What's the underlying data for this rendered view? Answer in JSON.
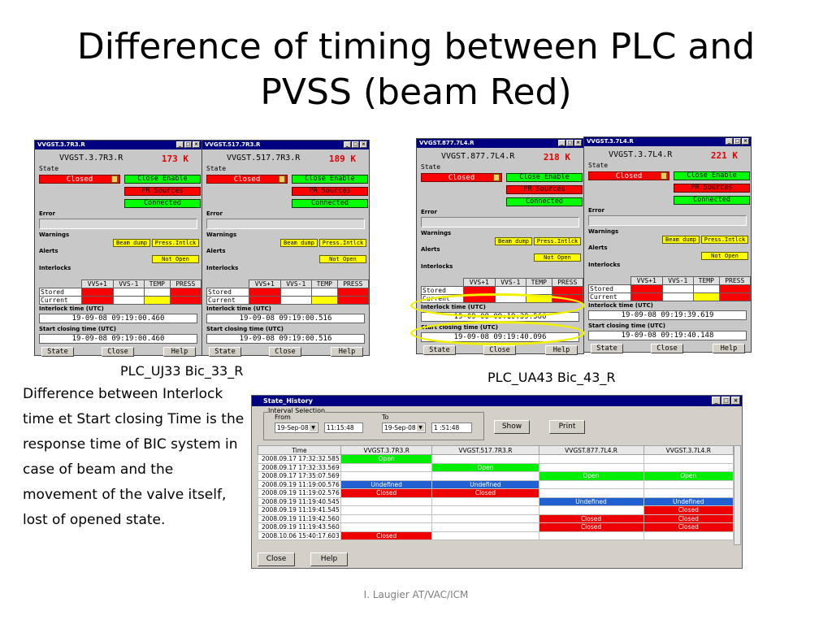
{
  "slide": {
    "title_line1": "Difference of timing between PLC and",
    "title_line2": "PVSS (beam Red)",
    "caption_left": "PLC_UJ33 Bic_33_R",
    "caption_right": "PLC_UA43 Bic_43_R",
    "body": "Difference between Interlock time et Start closing Time is the response time of BIC system in case of beam and the movement of the valve itself, lost of opened state.",
    "footer": "I. Laugier AT/VAC/ICM"
  },
  "labels": {
    "state": "State",
    "error": "Error",
    "warnings": "Warnings",
    "alerts": "Alerts",
    "interlocks": "Interlocks",
    "closed": "Closed",
    "close_enable": "Close Enable",
    "pr_sources": "PR Sources",
    "connected": "Connected",
    "beam_dump": "Beam dump",
    "press_intlck": "Press.Intlck",
    "not_open": "Not Open",
    "col_vvs1p": "VVS+1",
    "col_vvs1m": "VVS-1",
    "col_temp": "TEMP",
    "col_press": "PRESS",
    "stored": "Stored",
    "current": "Current",
    "interlock_time": "Interlock time (UTC)",
    "start_closing": "Start closing time (UTC)",
    "btn_state": "State",
    "btn_close": "Close",
    "btn_help": "Help"
  },
  "windows": [
    {
      "title": "VVGST.3.7R3.R",
      "name": "VVGST.3.7R3.R",
      "pressure": "173 K",
      "interlock_time": "19-09-08 09:19:00.460",
      "start_closing_time": "19-09-08 09:19:00.460"
    },
    {
      "title": "VVGST.517.7R3.R",
      "name": "VVGST.517.7R3.R",
      "pressure": "189 K",
      "interlock_time": "19-09-08 09:19:00.516",
      "start_closing_time": "19-09-08 09:19:00.516"
    },
    {
      "title": "VVGST.877.7L4.R",
      "name": "VVGST.877.7L4.R",
      "pressure": "218 K",
      "interlock_time": "19-09-08 09:19:39.566",
      "start_closing_time": "19-09-08 09:19:40.096"
    },
    {
      "title": "VVGST.3.7L4.R",
      "name": "VVGST.3.7L4.R",
      "pressure": "221 K",
      "interlock_time": "19-09-08 09:19:39.619",
      "start_closing_time": "19-09-08 09:19:40.148"
    }
  ],
  "history": {
    "title": "State_History",
    "interval_selection": "Interval Selection",
    "from": "From",
    "to": "To",
    "from_date": "19-Sep-08",
    "from_time": "11:15:48",
    "to_date": "19-Sep-08",
    "to_time": "1 :51:48",
    "show": "Show",
    "print": "Print",
    "close": "Close",
    "help": "Help",
    "columns": [
      "Time",
      "VVGST.3.7R3.R",
      "VVGST.517.7R3.R",
      "VVGST.877.7L4.R",
      "VVGST.3.7L4.R"
    ],
    "rows": [
      {
        "time": "2008.09.17 17:32:32.585",
        "cells": [
          {
            "t": "Open",
            "c": "g"
          },
          {
            "t": "",
            "c": ""
          },
          {
            "t": "",
            "c": ""
          },
          {
            "t": "",
            "c": ""
          }
        ]
      },
      {
        "time": "2008.09.17 17:32:33.569",
        "cells": [
          {
            "t": "",
            "c": ""
          },
          {
            "t": "Open",
            "c": "g"
          },
          {
            "t": "",
            "c": ""
          },
          {
            "t": "",
            "c": ""
          }
        ]
      },
      {
        "time": "2008.09.17 17:35:07.569",
        "cells": [
          {
            "t": "",
            "c": ""
          },
          {
            "t": "",
            "c": ""
          },
          {
            "t": "Open",
            "c": "g"
          },
          {
            "t": "Open",
            "c": "g"
          }
        ]
      },
      {
        "time": "2008.09.19 11:19:00.576",
        "cells": [
          {
            "t": "Undefined",
            "c": "b"
          },
          {
            "t": "Undefined",
            "c": "b"
          },
          {
            "t": "",
            "c": ""
          },
          {
            "t": "",
            "c": ""
          }
        ]
      },
      {
        "time": "2008.09.19 11:19:02.576",
        "cells": [
          {
            "t": "Closed",
            "c": "r"
          },
          {
            "t": "Closed",
            "c": "r"
          },
          {
            "t": "",
            "c": ""
          },
          {
            "t": "",
            "c": ""
          }
        ]
      },
      {
        "time": "2008.09.19 11:19:40.545",
        "cells": [
          {
            "t": "",
            "c": ""
          },
          {
            "t": "",
            "c": ""
          },
          {
            "t": "Undefined",
            "c": "b"
          },
          {
            "t": "Undefined",
            "c": "b"
          }
        ]
      },
      {
        "time": "2008.09.19 11:19:41.545",
        "cells": [
          {
            "t": "",
            "c": ""
          },
          {
            "t": "",
            "c": ""
          },
          {
            "t": "",
            "c": ""
          },
          {
            "t": "Closed",
            "c": "r"
          }
        ]
      },
      {
        "time": "2008.09.19 11:19:42.560",
        "cells": [
          {
            "t": "",
            "c": ""
          },
          {
            "t": "",
            "c": ""
          },
          {
            "t": "Closed",
            "c": "r"
          },
          {
            "t": "Closed",
            "c": "r"
          }
        ]
      },
      {
        "time": "2008.09.19 11:19:43.560",
        "cells": [
          {
            "t": "",
            "c": ""
          },
          {
            "t": "",
            "c": ""
          },
          {
            "t": "Closed",
            "c": "r"
          },
          {
            "t": "Closed",
            "c": "r"
          }
        ]
      },
      {
        "time": "2008.10.06 15:40:17.603",
        "cells": [
          {
            "t": "Closed",
            "c": "r"
          },
          {
            "t": "",
            "c": ""
          },
          {
            "t": "",
            "c": ""
          },
          {
            "t": "",
            "c": ""
          }
        ]
      }
    ]
  }
}
